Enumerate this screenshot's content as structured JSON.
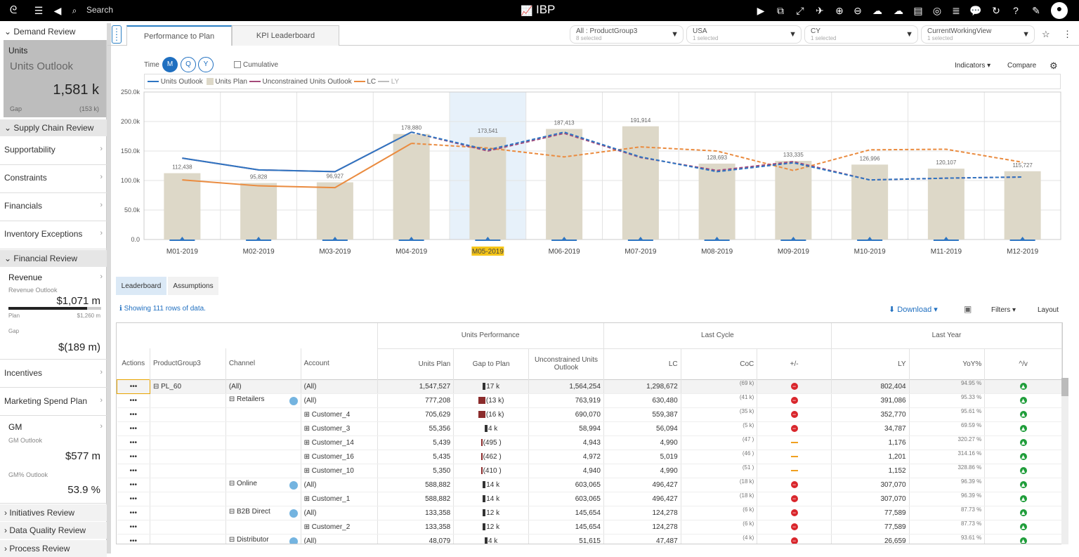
{
  "topbar": {
    "search": "Search",
    "app": "IBP"
  },
  "sidebar": {
    "demand_review": "Demand Review",
    "units": {
      "label": "Units",
      "outlook": "Units Outlook",
      "value": "1,581 k",
      "gap_label": "Gap",
      "gap_value": "(153 k)"
    },
    "supply_chain_review": "Supply Chain Review",
    "items1": [
      "Supportability",
      "Constraints",
      "Financials",
      "Inventory Exceptions"
    ],
    "financial_review": "Financial Review",
    "revenue": {
      "label": "Revenue",
      "outlook_label": "Revenue Outlook",
      "value": "$1,071 m",
      "plan_label": "Plan",
      "plan_value": "$1,260 m",
      "gap_label": "Gap",
      "gap_value": "$(189 m)"
    },
    "incentives": "Incentives",
    "marketing": "Marketing Spend Plan",
    "gm": {
      "label": "GM",
      "outlook_label": "GM Outlook",
      "value": "$577 m",
      "pct_label": "GM% Outlook",
      "pct_value": "53.9 %"
    },
    "initiatives": "Initiatives Review",
    "data_quality": "Data Quality Review",
    "process": "Process Review"
  },
  "tabs": [
    "Performance to Plan",
    "KPI Leaderboard"
  ],
  "filters": [
    {
      "label": "All : ProductGroup3",
      "sub": "8 selected"
    },
    {
      "label": "USA",
      "sub": "1 selected"
    },
    {
      "label": "CY",
      "sub": "1 selected"
    },
    {
      "label": "CurrentWorkingView",
      "sub": "1 selected"
    }
  ],
  "controls": {
    "time": "Time",
    "m": "M",
    "q": "Q",
    "y": "Y",
    "cumulative": "Cumulative",
    "indicators": "Indicators",
    "compare": "Compare"
  },
  "legend": [
    "Units Outlook",
    "Units Plan",
    "Unconstrained Units Outlook",
    "LC",
    "LY"
  ],
  "colors": {
    "outlook": "#2e75c2",
    "plan": "#ddd8c8",
    "unconstrained": "#a44a7a",
    "lc": "#ea8b3f",
    "ly": "#bdbdbd",
    "accent": "#2a7fc4",
    "highlight": "#f5c518"
  },
  "chart_data": {
    "type": "bar",
    "categories": [
      "M01-2019",
      "M02-2019",
      "M03-2019",
      "M04-2019",
      "M05-2019",
      "M06-2019",
      "M07-2019",
      "M08-2019",
      "M09-2019",
      "M10-2019",
      "M11-2019",
      "M12-2019"
    ],
    "yticks": [
      "0.0",
      "50.0k",
      "100.0k",
      "150.0k",
      "200.0k",
      "250.0k"
    ],
    "ylim": [
      0,
      250000
    ],
    "selected_category": "M05-2019",
    "series": [
      {
        "name": "Units Plan",
        "type": "bar",
        "values": [
          112438,
          95828,
          96927,
          178880,
          173541,
          187413,
          191914,
          128693,
          133335,
          126996,
          120107,
          115727
        ],
        "labels": [
          "112,438",
          "95,828",
          "96,927",
          "178,880",
          "173,541",
          "187,413",
          "191,914",
          "128,693",
          "133,335",
          "126,996",
          "120,107",
          "115,727"
        ]
      },
      {
        "name": "Units Outlook",
        "type": "line",
        "values": [
          138000,
          118000,
          115000,
          182000,
          152000,
          182000,
          140000,
          115000,
          130000,
          101000,
          104000,
          106000
        ]
      },
      {
        "name": "Unconstrained Units Outlook",
        "type": "line",
        "values": [
          138000,
          118000,
          115000,
          182000,
          150000,
          180000,
          139000,
          117000,
          132000,
          101000,
          104000,
          106000
        ]
      },
      {
        "name": "LC",
        "type": "line",
        "values": [
          101000,
          91000,
          88000,
          163000,
          155000,
          140000,
          157000,
          150000,
          117000,
          152000,
          153000,
          131000
        ]
      }
    ]
  },
  "bottom_tabs": [
    "Leaderboard",
    "Assumptions"
  ],
  "info": "Showing 111 rows of data.",
  "toolbar": {
    "download": "Download",
    "filters": "Filters",
    "layout": "Layout"
  },
  "grid": {
    "groups": [
      "Units Performance",
      "Last Cycle",
      "Last Year"
    ],
    "headers": [
      "Actions",
      "ProductGroup3",
      "Channel",
      "Account",
      "Units Plan",
      "Gap to Plan",
      "Unconstrained Units Outlook",
      "LC",
      "CoC",
      "+/-",
      "LY",
      "YoY%",
      "^/v"
    ],
    "rows": [
      {
        "pg": "⊟ PL_60",
        "ch": "(All)",
        "acc": "(All)",
        "plan": "1,547,527",
        "gap": "17 k",
        "gapbar": "pos",
        "unc": "1,564,254",
        "lc": "1,298,672",
        "coc": "(69 k)",
        "pm": "red",
        "ly": "802,404",
        "yoy": "94.95 %"
      },
      {
        "pg": "",
        "ch": "⊟ Retailers",
        "acc": "(All)",
        "plan": "777,208",
        "gap": "(13 k)",
        "gapbar": "neg",
        "unc": "763,919",
        "lc": "630,480",
        "coc": "(41 k)",
        "pm": "red",
        "ly": "391,086",
        "yoy": "95.33 %"
      },
      {
        "pg": "",
        "ch": "",
        "acc": "⊞ Customer_4",
        "plan": "705,629",
        "gap": "(16 k)",
        "gapbar": "neg",
        "unc": "690,070",
        "lc": "559,387",
        "coc": "(35 k)",
        "pm": "red",
        "ly": "352,770",
        "yoy": "95.61 %"
      },
      {
        "pg": "",
        "ch": "",
        "acc": "⊞ Customer_3",
        "plan": "55,356",
        "gap": "4 k",
        "gapbar": "pos",
        "unc": "58,994",
        "lc": "56,094",
        "coc": "(5 k)",
        "pm": "red",
        "ly": "34,787",
        "yoy": "69.59 %"
      },
      {
        "pg": "",
        "ch": "",
        "acc": "⊞ Customer_14",
        "plan": "5,439",
        "gap": "(495 )",
        "gapbar": "neg",
        "unc": "4,943",
        "lc": "4,990",
        "coc": "(47 )",
        "pm": "dash",
        "ly": "1,176",
        "yoy": "320.27 %"
      },
      {
        "pg": "",
        "ch": "",
        "acc": "⊞ Customer_16",
        "plan": "5,435",
        "gap": "(462 )",
        "gapbar": "neg",
        "unc": "4,972",
        "lc": "5,019",
        "coc": "(46 )",
        "pm": "dash",
        "ly": "1,201",
        "yoy": "314.16 %"
      },
      {
        "pg": "",
        "ch": "",
        "acc": "⊞ Customer_10",
        "plan": "5,350",
        "gap": "(410 )",
        "gapbar": "neg",
        "unc": "4,940",
        "lc": "4,990",
        "coc": "(51 )",
        "pm": "dash",
        "ly": "1,152",
        "yoy": "328.86 %"
      },
      {
        "pg": "",
        "ch": "⊟ Online",
        "acc": "(All)",
        "plan": "588,882",
        "gap": "14 k",
        "gapbar": "pos",
        "unc": "603,065",
        "lc": "496,427",
        "coc": "(18 k)",
        "pm": "red",
        "ly": "307,070",
        "yoy": "96.39 %"
      },
      {
        "pg": "",
        "ch": "",
        "acc": "⊞ Customer_1",
        "plan": "588,882",
        "gap": "14 k",
        "gapbar": "pos",
        "unc": "603,065",
        "lc": "496,427",
        "coc": "(18 k)",
        "pm": "red",
        "ly": "307,070",
        "yoy": "96.39 %"
      },
      {
        "pg": "",
        "ch": "⊟ B2B Direct",
        "acc": "(All)",
        "plan": "133,358",
        "gap": "12 k",
        "gapbar": "pos",
        "unc": "145,654",
        "lc": "124,278",
        "coc": "(6 k)",
        "pm": "red",
        "ly": "77,589",
        "yoy": "87.73 %"
      },
      {
        "pg": "",
        "ch": "",
        "acc": "⊞ Customer_2",
        "plan": "133,358",
        "gap": "12 k",
        "gapbar": "pos",
        "unc": "145,654",
        "lc": "124,278",
        "coc": "(6 k)",
        "pm": "red",
        "ly": "77,589",
        "yoy": "87.73 %"
      },
      {
        "pg": "",
        "ch": "⊟ Distributor",
        "acc": "(All)",
        "plan": "48,079",
        "gap": "4 k",
        "gapbar": "pos",
        "unc": "51,615",
        "lc": "47,487",
        "coc": "(4 k)",
        "pm": "red",
        "ly": "26,659",
        "yoy": "93.61 %"
      }
    ]
  }
}
